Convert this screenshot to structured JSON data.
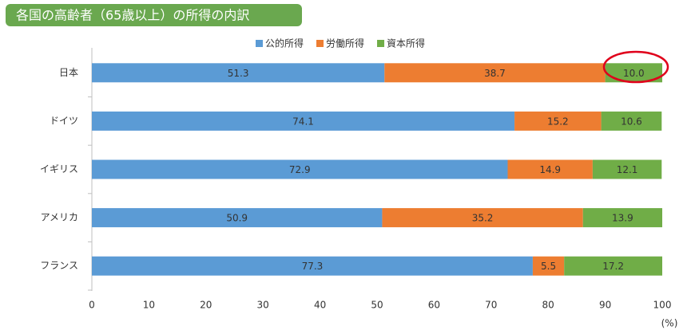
{
  "chart_data": {
    "type": "stacked-bar-horizontal",
    "title": "各国の高齢者（65歳以上）の所得の内訳",
    "categories": [
      "日本",
      "ドイツ",
      "イギリス",
      "アメリカ",
      "フランス"
    ],
    "series": [
      {
        "name": "公的所得",
        "color": "#5b9bd5",
        "values": [
          51.3,
          74.1,
          72.9,
          50.9,
          77.3
        ]
      },
      {
        "name": "労働所得",
        "color": "#ed7d31",
        "values": [
          38.7,
          15.2,
          14.9,
          35.2,
          5.5
        ]
      },
      {
        "name": "資本所得",
        "color": "#70ad47",
        "values": [
          10,
          10.6,
          12.1,
          13.9,
          17.2
        ],
        "value_labels": [
          "10.0",
          "10.6",
          "12.1",
          "13.9",
          "17.2"
        ]
      }
    ],
    "xlim": [
      0,
      100
    ],
    "xticks": [
      0,
      10,
      20,
      30,
      40,
      50,
      60,
      70,
      80,
      90,
      100
    ],
    "xlabel": "(%)",
    "legend": "top"
  }
}
